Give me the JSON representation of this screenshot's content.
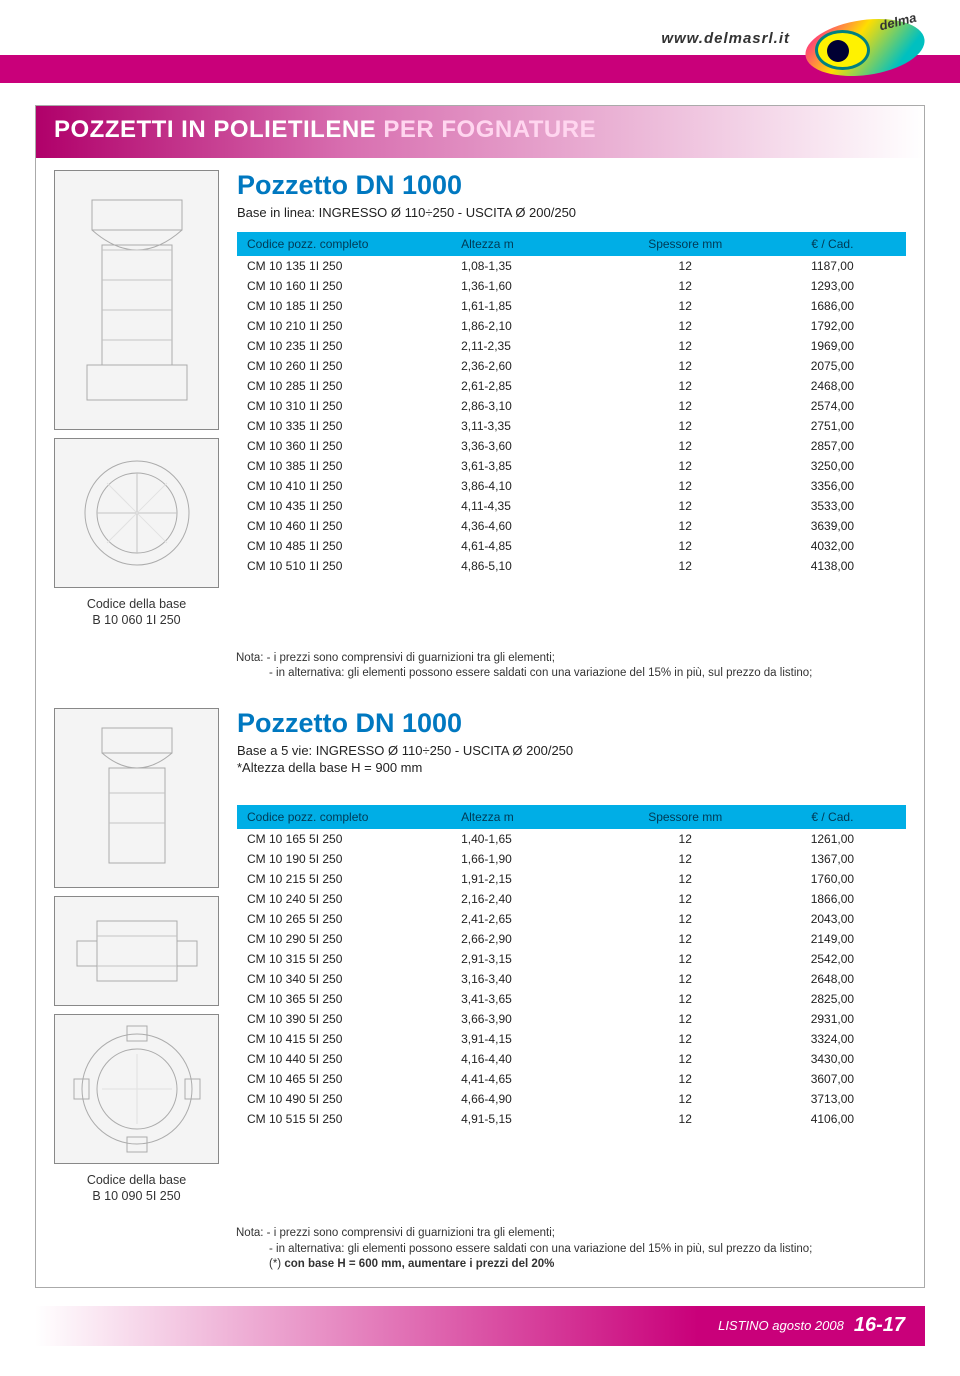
{
  "header": {
    "url": "www.delmasrl.it",
    "logo_text": "delma"
  },
  "main_title_prefix": "POZZETTI IN POLIETILENE ",
  "main_title_accent": "PER FOGNATURE",
  "colors": {
    "magenta": "#c9007a",
    "header_gradient_from": "#b0006a",
    "header_gradient_to": "#ffffff",
    "blue_title": "#0078c0",
    "table_header_bg": "#00aee6",
    "table_header_text": "#003a55"
  },
  "table_headers": {
    "col1": "Codice pozz. completo",
    "col2": "Altezza m",
    "col3": "Spessore mm",
    "col4": "€ / Cad."
  },
  "section1": {
    "title": "Pozzetto DN 1000",
    "subtitle": "Base in linea: INGRESSO Ø 110÷250 - USCITA Ø 200/250",
    "base_label": "Codice della base",
    "base_code": "B 10 060 1I 250",
    "rows": [
      {
        "code": "CM 10 135 1I 250",
        "h": "1,08-1,35",
        "sp": "12",
        "price": "1187,00"
      },
      {
        "code": "CM 10 160 1I 250",
        "h": "1,36-1,60",
        "sp": "12",
        "price": "1293,00"
      },
      {
        "code": "CM 10 185 1I 250",
        "h": "1,61-1,85",
        "sp": "12",
        "price": "1686,00"
      },
      {
        "code": "CM 10 210 1I 250",
        "h": "1,86-2,10",
        "sp": "12",
        "price": "1792,00"
      },
      {
        "code": "CM 10 235 1I 250",
        "h": "2,11-2,35",
        "sp": "12",
        "price": "1969,00"
      },
      {
        "code": "CM 10 260 1I 250",
        "h": "2,36-2,60",
        "sp": "12",
        "price": "2075,00"
      },
      {
        "code": "CM 10 285 1I 250",
        "h": "2,61-2,85",
        "sp": "12",
        "price": "2468,00"
      },
      {
        "code": "CM 10 310 1I 250",
        "h": "2,86-3,10",
        "sp": "12",
        "price": "2574,00"
      },
      {
        "code": "CM 10 335 1I 250",
        "h": "3,11-3,35",
        "sp": "12",
        "price": "2751,00"
      },
      {
        "code": "CM 10 360 1I 250",
        "h": "3,36-3,60",
        "sp": "12",
        "price": "2857,00"
      },
      {
        "code": "CM 10 385 1I 250",
        "h": "3,61-3,85",
        "sp": "12",
        "price": "3250,00"
      },
      {
        "code": "CM 10 410 1I 250",
        "h": "3,86-4,10",
        "sp": "12",
        "price": "3356,00"
      },
      {
        "code": "CM 10 435 1I 250",
        "h": "4,11-4,35",
        "sp": "12",
        "price": "3533,00"
      },
      {
        "code": "CM 10 460 1I 250",
        "h": "4,36-4,60",
        "sp": "12",
        "price": "3639,00"
      },
      {
        "code": "CM 10 485 1I 250",
        "h": "4,61-4,85",
        "sp": "12",
        "price": "4032,00"
      },
      {
        "code": "CM 10 510 1I 250",
        "h": "4,86-5,10",
        "sp": "12",
        "price": "4138,00"
      }
    ],
    "note_line1": "Nota: - i prezzi sono comprensivi di guarnizioni tra gli elementi;",
    "note_line2": "- in alternativa: gli elementi possono essere saldati con una variazione del 15% in più, sul prezzo da listino;"
  },
  "section2": {
    "title": "Pozzetto DN 1000",
    "subtitle_line1": "Base a 5 vie: INGRESSO Ø 110÷250 - USCITA Ø 200/250",
    "subtitle_line2": "*Altezza della base H = 900 mm",
    "base_label": "Codice della base",
    "base_code": "B 10 090 5I 250",
    "rows": [
      {
        "code": "CM 10 165 5I 250",
        "h": "1,40-1,65",
        "sp": "12",
        "price": "1261,00"
      },
      {
        "code": "CM 10 190 5I 250",
        "h": "1,66-1,90",
        "sp": "12",
        "price": "1367,00"
      },
      {
        "code": "CM 10 215 5I 250",
        "h": "1,91-2,15",
        "sp": "12",
        "price": "1760,00"
      },
      {
        "code": "CM 10 240 5I 250",
        "h": "2,16-2,40",
        "sp": "12",
        "price": "1866,00"
      },
      {
        "code": "CM 10 265 5I 250",
        "h": "2,41-2,65",
        "sp": "12",
        "price": "2043,00"
      },
      {
        "code": "CM 10 290 5I 250",
        "h": "2,66-2,90",
        "sp": "12",
        "price": "2149,00"
      },
      {
        "code": "CM 10 315 5I 250",
        "h": "2,91-3,15",
        "sp": "12",
        "price": "2542,00"
      },
      {
        "code": "CM 10 340 5I 250",
        "h": "3,16-3,40",
        "sp": "12",
        "price": "2648,00"
      },
      {
        "code": "CM 10 365 5I 250",
        "h": "3,41-3,65",
        "sp": "12",
        "price": "2825,00"
      },
      {
        "code": "CM 10 390 5I 250",
        "h": "3,66-3,90",
        "sp": "12",
        "price": "2931,00"
      },
      {
        "code": "CM 10 415 5I 250",
        "h": "3,91-4,15",
        "sp": "12",
        "price": "3324,00"
      },
      {
        "code": "CM 10 440 5I 250",
        "h": "4,16-4,40",
        "sp": "12",
        "price": "3430,00"
      },
      {
        "code": "CM 10 465 5I 250",
        "h": "4,41-4,65",
        "sp": "12",
        "price": "3607,00"
      },
      {
        "code": "CM 10 490 5I 250",
        "h": "4,66-4,90",
        "sp": "12",
        "price": "3713,00"
      },
      {
        "code": "CM 10 515 5I 250",
        "h": "4,91-5,15",
        "sp": "12",
        "price": "4106,00"
      }
    ],
    "note_line1": "Nota: - i prezzi sono comprensivi di guarnizioni tra gli elementi;",
    "note_line2": "- in alternativa: gli elementi possono essere saldati con una variazione del 15% in più, sul prezzo da listino;",
    "note_line3_prefix": "(*)",
    "note_line3": " con base H = 600 mm, aumentare i prezzi del 20%"
  },
  "footer": {
    "label": "LISTINO  agosto 2008",
    "page": "16-17"
  }
}
